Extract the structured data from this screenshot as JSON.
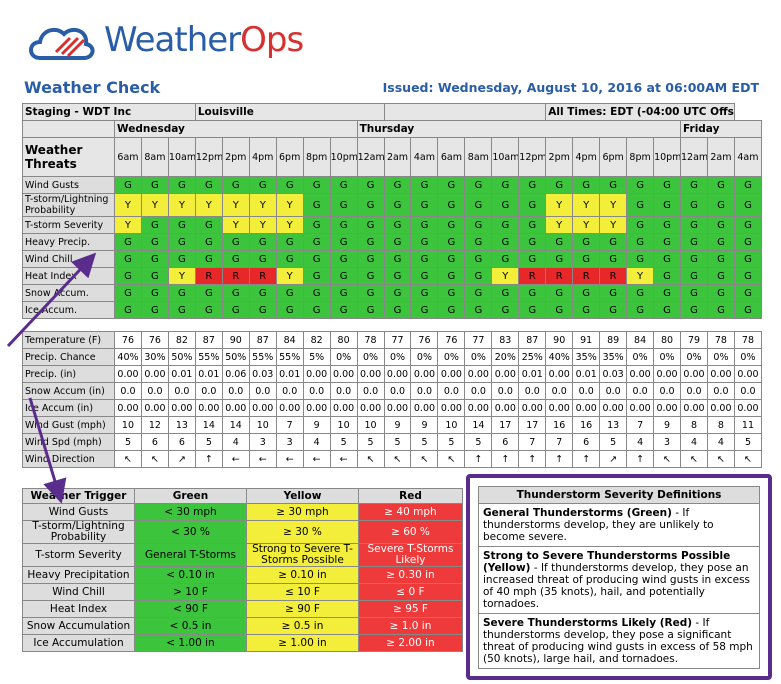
{
  "header": {
    "logo": [
      "Weather",
      "Ops"
    ],
    "title": "Weather Check",
    "issued": "Issued: Wednesday, August 10, 2016 at 06:00AM EDT"
  },
  "forecast": {
    "location": [
      "Staging - WDT Inc",
      "Louisville"
    ],
    "timezone": "All Times: EDT (-04:00 UTC Offset)",
    "days": [
      {
        "name": "Wednesday",
        "times": [
          "6am",
          "8am",
          "10am",
          "12pm",
          "2pm",
          "4pm",
          "6pm",
          "8pm",
          "10pm"
        ]
      },
      {
        "name": "Thursday",
        "times": [
          "12am",
          "2am",
          "4am",
          "6am",
          "8am",
          "10am",
          "12pm",
          "2pm",
          "4pm",
          "6pm",
          "8pm",
          "10pm"
        ]
      },
      {
        "name": "Friday",
        "times": [
          "12am",
          "2am",
          "4am"
        ]
      }
    ],
    "threats_label": "Weather Threats",
    "threats": [
      {
        "name": "Wind Gusts",
        "levels": [
          "G",
          "G",
          "G",
          "G",
          "G",
          "G",
          "G",
          "G",
          "G",
          "G",
          "G",
          "G",
          "G",
          "G",
          "G",
          "G",
          "G",
          "G",
          "G",
          "G",
          "G",
          "G",
          "G",
          "G"
        ]
      },
      {
        "name": "T-storm/Lightning Probability",
        "levels": [
          "Y",
          "Y",
          "Y",
          "Y",
          "Y",
          "Y",
          "Y",
          "G",
          "G",
          "G",
          "G",
          "G",
          "G",
          "G",
          "G",
          "G",
          "Y",
          "Y",
          "Y",
          "G",
          "G",
          "G",
          "G",
          "G"
        ]
      },
      {
        "name": "T-storm Severity",
        "levels": [
          "Y",
          "G",
          "G",
          "G",
          "Y",
          "Y",
          "Y",
          "G",
          "G",
          "G",
          "G",
          "G",
          "G",
          "G",
          "G",
          "G",
          "Y",
          "Y",
          "Y",
          "G",
          "G",
          "G",
          "G",
          "G"
        ]
      },
      {
        "name": "Heavy Precip.",
        "levels": [
          "G",
          "G",
          "G",
          "G",
          "G",
          "G",
          "G",
          "G",
          "G",
          "G",
          "G",
          "G",
          "G",
          "G",
          "G",
          "G",
          "G",
          "G",
          "G",
          "G",
          "G",
          "G",
          "G",
          "G"
        ]
      },
      {
        "name": "Wind Chill",
        "levels": [
          "G",
          "G",
          "G",
          "G",
          "G",
          "G",
          "G",
          "G",
          "G",
          "G",
          "G",
          "G",
          "G",
          "G",
          "G",
          "G",
          "G",
          "G",
          "G",
          "G",
          "G",
          "G",
          "G",
          "G"
        ]
      },
      {
        "name": "Heat Index",
        "levels": [
          "G",
          "G",
          "Y",
          "R",
          "R",
          "R",
          "Y",
          "G",
          "G",
          "G",
          "G",
          "G",
          "G",
          "G",
          "Y",
          "R",
          "R",
          "R",
          "R",
          "Y",
          "G",
          "G",
          "G",
          "G"
        ]
      },
      {
        "name": "Snow Accum.",
        "levels": [
          "G",
          "G",
          "G",
          "G",
          "G",
          "G",
          "G",
          "G",
          "G",
          "G",
          "G",
          "G",
          "G",
          "G",
          "G",
          "G",
          "G",
          "G",
          "G",
          "G",
          "G",
          "G",
          "G",
          "G"
        ]
      },
      {
        "name": "Ice Accum.",
        "levels": [
          "G",
          "G",
          "G",
          "G",
          "G",
          "G",
          "G",
          "G",
          "G",
          "G",
          "G",
          "G",
          "G",
          "G",
          "G",
          "G",
          "G",
          "G",
          "G",
          "G",
          "G",
          "G",
          "G",
          "G"
        ]
      }
    ],
    "measures": [
      {
        "name": "Temperature (F)",
        "values": [
          "76",
          "76",
          "82",
          "87",
          "90",
          "87",
          "84",
          "82",
          "80",
          "78",
          "77",
          "76",
          "76",
          "77",
          "83",
          "87",
          "90",
          "91",
          "89",
          "84",
          "80",
          "79",
          "78",
          "78"
        ]
      },
      {
        "name": "Precip. Chance",
        "values": [
          "40%",
          "30%",
          "50%",
          "55%",
          "50%",
          "55%",
          "55%",
          "5%",
          "0%",
          "0%",
          "0%",
          "0%",
          "0%",
          "0%",
          "20%",
          "25%",
          "40%",
          "35%",
          "35%",
          "0%",
          "0%",
          "0%",
          "0%",
          "0%"
        ]
      },
      {
        "name": "Precip. (in)",
        "values": [
          "0.00",
          "0.00",
          "0.01",
          "0.01",
          "0.06",
          "0.03",
          "0.01",
          "0.00",
          "0.00",
          "0.00",
          "0.00",
          "0.00",
          "0.00",
          "0.00",
          "0.00",
          "0.01",
          "0.00",
          "0.01",
          "0.03",
          "0.00",
          "0.00",
          "0.00",
          "0.00",
          "0.00"
        ]
      },
      {
        "name": "Snow Accum (in)",
        "values": [
          "0.0",
          "0.0",
          "0.0",
          "0.0",
          "0.0",
          "0.0",
          "0.0",
          "0.0",
          "0.0",
          "0.0",
          "0.0",
          "0.0",
          "0.0",
          "0.0",
          "0.0",
          "0.0",
          "0.0",
          "0.0",
          "0.0",
          "0.0",
          "0.0",
          "0.0",
          "0.0",
          "0.0"
        ]
      },
      {
        "name": "Ice Accum (in)",
        "values": [
          "0.00",
          "0.00",
          "0.00",
          "0.00",
          "0.00",
          "0.00",
          "0.00",
          "0.00",
          "0.00",
          "0.00",
          "0.00",
          "0.00",
          "0.00",
          "0.00",
          "0.00",
          "0.00",
          "0.00",
          "0.00",
          "0.00",
          "0.00",
          "0.00",
          "0.00",
          "0.00",
          "0.00"
        ]
      },
      {
        "name": "Wind Gust (mph)",
        "values": [
          "10",
          "12",
          "13",
          "14",
          "14",
          "10",
          "7",
          "9",
          "10",
          "10",
          "9",
          "9",
          "10",
          "14",
          "17",
          "17",
          "16",
          "16",
          "13",
          "7",
          "9",
          "8",
          "8",
          "11"
        ]
      },
      {
        "name": "Wind Spd (mph)",
        "values": [
          "5",
          "6",
          "6",
          "5",
          "4",
          "3",
          "3",
          "4",
          "5",
          "5",
          "5",
          "5",
          "5",
          "5",
          "6",
          "7",
          "7",
          "6",
          "5",
          "4",
          "3",
          "4",
          "4",
          "5"
        ]
      },
      {
        "name": "Wind Direction",
        "values": [
          "↖",
          "↖",
          "↗",
          "↑",
          "←",
          "←",
          "←",
          "←",
          "←",
          "↖",
          "↖",
          "↖",
          "↖",
          "↑",
          "↑",
          "↑",
          "↑",
          "↑",
          "↗",
          "↑",
          "↖",
          "↖",
          "↖",
          "↖"
        ]
      }
    ]
  },
  "triggers": {
    "header": [
      "Weather Trigger",
      "Green",
      "Yellow",
      "Red"
    ],
    "rows": [
      [
        "Wind Gusts",
        "< 30 mph",
        "≥ 30 mph",
        "≥ 40 mph"
      ],
      [
        "T-storm/Lightning Probability",
        "< 30 %",
        "≥ 30 %",
        "≥ 60 %"
      ],
      [
        "T-storm Severity",
        "General T-Storms",
        "Strong to Severe T-Storms Possible",
        "Severe T-Storms Likely"
      ],
      [
        "Heavy Precipitation",
        "< 0.10 in",
        "≥ 0.10 in",
        "≥ 0.30 in"
      ],
      [
        "Wind Chill",
        "> 10 F",
        "≤ 10 F",
        "≤ 0 F"
      ],
      [
        "Heat Index",
        "< 90 F",
        "≥ 90 F",
        "≥ 95 F"
      ],
      [
        "Snow Accumulation",
        "< 0.5 in",
        "≥ 0.5 in",
        "≥ 1.0 in"
      ],
      [
        "Ice Accumulation",
        "< 1.00 in",
        "≥ 1.00 in",
        "≥ 2.00 in"
      ]
    ]
  },
  "definitions": {
    "title": "Thunderstorm Severity Definitions",
    "items": [
      {
        "term": "General Thunderstorms (Green)",
        "text": " - If thunderstorms develop, they are unlikely to become severe."
      },
      {
        "term": "Strong to Severe Thunderstorms Possible (Yellow)",
        "text": " - If thunderstorms develop, they pose an increased threat of producing wind gusts in excess of 40 mph (35 knots), hail, and potentially tornadoes."
      },
      {
        "term": "Severe Thunderstorms Likely (Red)",
        "text": " - If thunderstorms develop, they pose a significant threat of producing wind gusts in excess of 58 mph (50 knots), large hail, and tornadoes."
      }
    ]
  }
}
